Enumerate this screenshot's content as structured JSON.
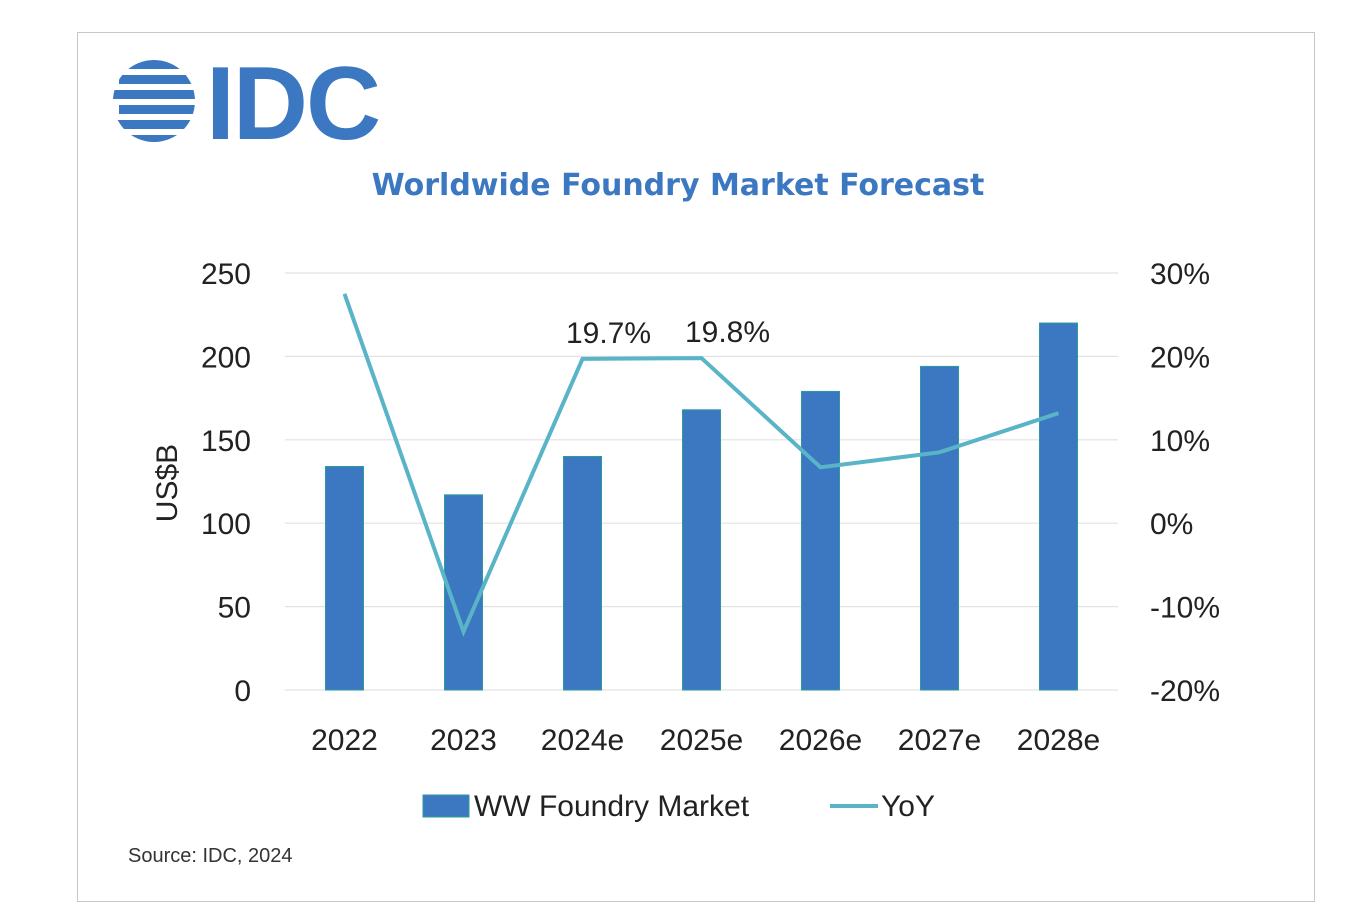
{
  "brand": {
    "name": "IDC",
    "color": "#3b78c1",
    "logo_icon": "idc-globe-logo"
  },
  "chart_data": {
    "type": "bar",
    "title": "Worldwide Foundry Market Forecast",
    "categories": [
      "2022",
      "2023",
      "2024e",
      "2025e",
      "2026e",
      "2027e",
      "2028e"
    ],
    "series": [
      {
        "name": "WW Foundry Market",
        "type": "bar",
        "axis": "left",
        "color": "#3b78c1",
        "values": [
          134,
          117,
          140,
          168,
          179,
          194,
          220
        ]
      },
      {
        "name": "YoY",
        "type": "line",
        "axis": "right",
        "color": "#5ab4c8",
        "values": [
          27.5,
          -13,
          19.7,
          19.8,
          6.7,
          8.5,
          13.2
        ],
        "data_labels": [
          "",
          "",
          "19.7%",
          "19.8%",
          "",
          "",
          ""
        ]
      }
    ],
    "ylabel": "US$B",
    "ylim": [
      0,
      250
    ],
    "y_ticks": [
      0,
      50,
      100,
      150,
      200,
      250
    ],
    "y2lim": [
      -20,
      30
    ],
    "y2_ticks": [
      -20,
      -10,
      0,
      10,
      20,
      30
    ],
    "y2_tick_labels": [
      "-20%",
      "-10%",
      "0%",
      "10%",
      "20%",
      "30%"
    ],
    "grid": true,
    "legend_position": "bottom"
  },
  "source_note": "Source: IDC, 2024"
}
